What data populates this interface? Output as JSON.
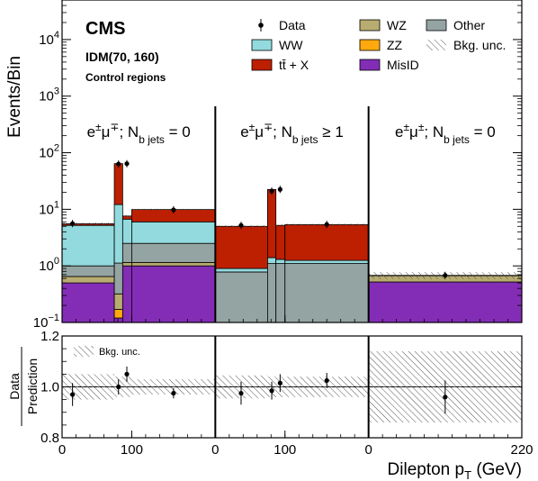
{
  "chart_data": {
    "type": "bar",
    "figure": {
      "experiment": "CMS",
      "model": "IDM(70, 160)",
      "selection": "Control regions",
      "xlabel": "Dilepton p",
      "xlabel_sub": "T",
      "xlabel_unit": " (GeV)",
      "ylabel": "Events/Bin",
      "ratio_ylabel_num": "Data",
      "ratio_ylabel_den": "Prediction"
    },
    "main_axis": {
      "scale": "log",
      "ylim": [
        0.1,
        50000
      ],
      "ticks": [
        {
          "v": 0.1,
          "base": "10",
          "exp": "−1"
        },
        {
          "v": 1,
          "base": "10",
          "exp": "0"
        },
        {
          "v": 10,
          "base": "10",
          "exp": "1"
        },
        {
          "v": 100,
          "base": "10",
          "exp": "2"
        },
        {
          "v": 1000,
          "base": "10",
          "exp": "3"
        },
        {
          "v": 10000,
          "base": "10",
          "exp": "4"
        }
      ]
    },
    "ratio_axis": {
      "ylim": [
        0.8,
        1.2
      ],
      "ticks": [
        "0.8",
        "1.0",
        "1.2"
      ],
      "legend": "Bkg. unc."
    },
    "regions": [
      {
        "label": "e<tspan baseline-shift='super' font-size='12'>±</tspan>μ<tspan baseline-shift='super' font-size='12'>∓</tspan>; N<tspan baseline-shift='sub' font-size='12'>b jets</tspan> = 0",
        "xlim": [
          0,
          220
        ],
        "edges": [
          0,
          75,
          87,
          100,
          220
        ],
        "ticks": [
          "0",
          "100"
        ],
        "tick_values": [
          0,
          100
        ]
      },
      {
        "label": "e<tspan baseline-shift='super' font-size='12'>±</tspan>μ<tspan baseline-shift='super' font-size='12'>∓</tspan>; N<tspan baseline-shift='sub' font-size='12'>b jets</tspan> ≥ 1",
        "xlim": [
          0,
          220
        ],
        "edges": [
          0,
          75,
          87,
          100,
          220
        ],
        "ticks": [
          "0",
          "100"
        ],
        "tick_values": [
          0,
          100
        ]
      },
      {
        "label": "e<tspan baseline-shift='super' font-size='12'>±</tspan>μ<tspan baseline-shift='super' font-size='12'>±</tspan>; N<tspan baseline-shift='sub' font-size='12'>b jets</tspan> = 0",
        "xlim": [
          0,
          220
        ],
        "edges": [
          0,
          220
        ],
        "ticks": [
          "0",
          "220"
        ],
        "tick_values": [
          0,
          220
        ]
      }
    ],
    "series": [
      {
        "name": "MisID",
        "color": "#832db6",
        "values": [
          [
            0.5,
            0.12,
            1.0,
            1.0
          ],
          [
            0.0,
            0.0,
            0.0,
            0.0
          ],
          [
            0.52
          ]
        ]
      },
      {
        "name": "ZZ",
        "color": "#ffa90e",
        "values": [
          [
            0.0,
            0.05,
            0.0,
            0.0
          ],
          [
            0.0,
            0.0,
            0.0,
            0.0
          ],
          [
            0.0
          ]
        ]
      },
      {
        "name": "WZ",
        "color": "#b9ac70",
        "values": [
          [
            0.15,
            0.15,
            0.15,
            0.15
          ],
          [
            0.0,
            0.0,
            0.0,
            0.0
          ],
          [
            0.15
          ]
        ]
      },
      {
        "name": "Other",
        "color": "#94a4a2",
        "values": [
          [
            0.35,
            0.8,
            1.35,
            1.35
          ],
          [
            0.78,
            1.1,
            1.1,
            1.1
          ],
          [
            0.01
          ]
        ]
      },
      {
        "name": "WW",
        "color": "#92dadd",
        "values": [
          [
            4.2,
            11,
            4.2,
            3.5
          ],
          [
            0.12,
            0.3,
            0.2,
            0.15
          ],
          [
            0.0
          ]
        ]
      },
      {
        "name": "tt̄ + X",
        "color": "#bd1f01",
        "values": [
          [
            0.35,
            52,
            0.9,
            3.9
          ],
          [
            4.1,
            21,
            3.9,
            4.1
          ],
          [
            0.0
          ]
        ]
      }
    ],
    "data": [
      {
        "region": 0,
        "x": 15,
        "y": 5.6,
        "ratio": 0.97,
        "err": 0.045
      },
      {
        "region": 0,
        "x": 81,
        "y": 63,
        "ratio": 1.0,
        "err": 0.03
      },
      {
        "region": 0,
        "x": 93,
        "y": 64,
        "ratio": 1.05,
        "err": 0.03
      },
      {
        "region": 0,
        "x": 160,
        "y": 9.8,
        "ratio": 0.975,
        "err": 0.02
      },
      {
        "region": 1,
        "x": 37,
        "y": 5.2,
        "ratio": 0.975,
        "err": 0.045
      },
      {
        "region": 1,
        "x": 81,
        "y": 21,
        "ratio": 0.985,
        "err": 0.035
      },
      {
        "region": 1,
        "x": 93,
        "y": 22.5,
        "ratio": 1.015,
        "err": 0.035
      },
      {
        "region": 1,
        "x": 160,
        "y": 5.4,
        "ratio": 1.025,
        "err": 0.03
      },
      {
        "region": 2,
        "x": 110,
        "y": 0.68,
        "ratio": 0.96,
        "err": 0.065
      }
    ],
    "unc_band": [
      [
        0.05,
        0.04,
        0.04,
        0.03
      ],
      [
        0.045,
        0.04,
        0.04,
        0.04
      ],
      [
        0.14
      ]
    ],
    "legend": [
      {
        "label": "Data",
        "kind": "marker"
      },
      {
        "label": "WZ",
        "kind": "fill",
        "color": "#b9ac70"
      },
      {
        "label": "Other",
        "kind": "fill",
        "color": "#94a4a2"
      },
      {
        "label": "WW",
        "kind": "fill",
        "color": "#92dadd"
      },
      {
        "label": "ZZ",
        "kind": "fill",
        "color": "#ffa90e"
      },
      {
        "label": "Bkg. unc.",
        "kind": "hatch"
      },
      {
        "label": "tt̄ + X",
        "kind": "fill",
        "color": "#bd1f01"
      },
      {
        "label": "MisID",
        "kind": "fill",
        "color": "#832db6"
      }
    ]
  }
}
